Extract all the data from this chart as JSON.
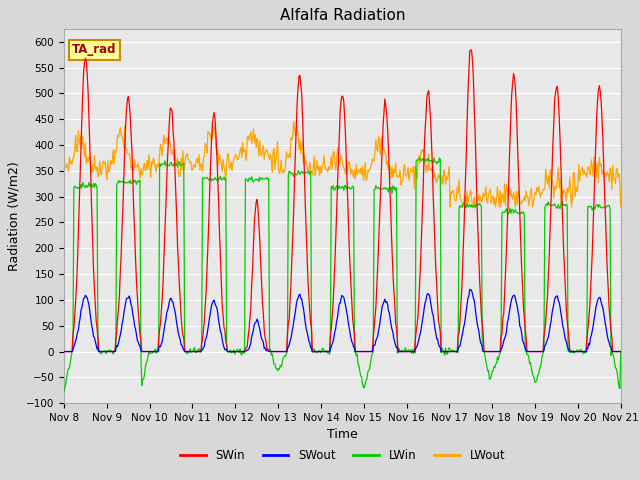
{
  "title": "Alfalfa Radiation",
  "ylabel": "Radiation (W/m2)",
  "xlabel": "Time",
  "ylim": [
    -100,
    625
  ],
  "yticks": [
    -100,
    -50,
    0,
    50,
    100,
    150,
    200,
    250,
    300,
    350,
    400,
    450,
    500,
    550,
    600
  ],
  "xtick_labels": [
    "Nov 8",
    "Nov 9",
    "Nov 10",
    "Nov 11",
    "Nov 12",
    "Nov 13",
    "Nov 14",
    "Nov 15",
    "Nov 16",
    "Nov 17",
    "Nov 18",
    "Nov 19",
    "Nov 20",
    "Nov 21"
  ],
  "series_colors": {
    "SWin": "#ff0000",
    "SWout": "#0000ff",
    "LWin": "#00cc00",
    "LWout": "#ffa500"
  },
  "annotation_text": "TA_rad",
  "annotation_bg": "#ffff99",
  "annotation_border": "#cc8800",
  "bg_color": "#e8e8e8",
  "grid_color": "#ffffff",
  "title_fontsize": 11,
  "axis_fontsize": 9,
  "tick_fontsize": 7.5
}
